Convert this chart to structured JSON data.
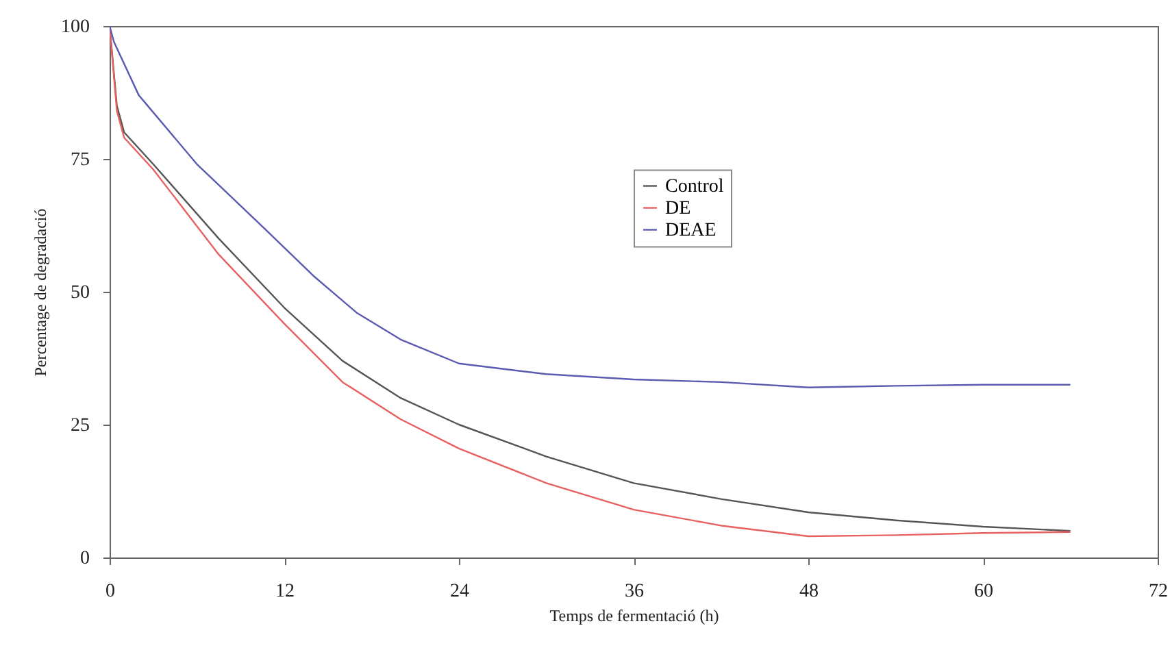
{
  "chart_data": {
    "type": "line",
    "xlabel": "Temps de fermentació (h)",
    "ylabel": "Percentage de degradació",
    "xlim": [
      0,
      72
    ],
    "xticks": [
      0,
      12,
      24,
      36,
      48,
      60,
      72
    ],
    "ylim": [
      0,
      100
    ],
    "yticks": [
      0,
      25,
      50,
      75,
      100
    ],
    "grid": false,
    "legend": "top",
    "line_style": "solid",
    "marker": "none",
    "series": [
      {
        "name": "Control",
        "color": "#555555",
        "x": [
          0,
          0.5,
          1,
          3,
          7.5,
          12,
          16,
          20,
          24,
          30,
          36,
          42,
          48,
          54,
          60,
          66
        ],
        "values": [
          100,
          85,
          80,
          74,
          60,
          47,
          37,
          30,
          25,
          19,
          14,
          11,
          8.5,
          7,
          5.8,
          5
        ]
      },
      {
        "name": "DE",
        "color": "#e86060",
        "x": [
          0,
          0.5,
          1,
          3,
          7.5,
          12,
          16,
          20,
          24,
          30,
          36,
          42,
          48,
          54,
          60,
          66
        ],
        "values": [
          100,
          84,
          79,
          73,
          57,
          44,
          33,
          26,
          20.5,
          14,
          9,
          6,
          4,
          4.2,
          4.6,
          4.8
        ]
      },
      {
        "name": "DEAE",
        "color": "#5a5ab0",
        "x": [
          0,
          0.3,
          2,
          6,
          10.6,
          14,
          17,
          20,
          24,
          30,
          36,
          42,
          48,
          54,
          60,
          66
        ],
        "values": [
          100,
          97,
          87,
          74,
          62,
          53,
          46,
          41,
          36.5,
          34.5,
          33.5,
          33,
          32,
          32.3,
          32.5,
          32.5
        ]
      }
    ]
  }
}
